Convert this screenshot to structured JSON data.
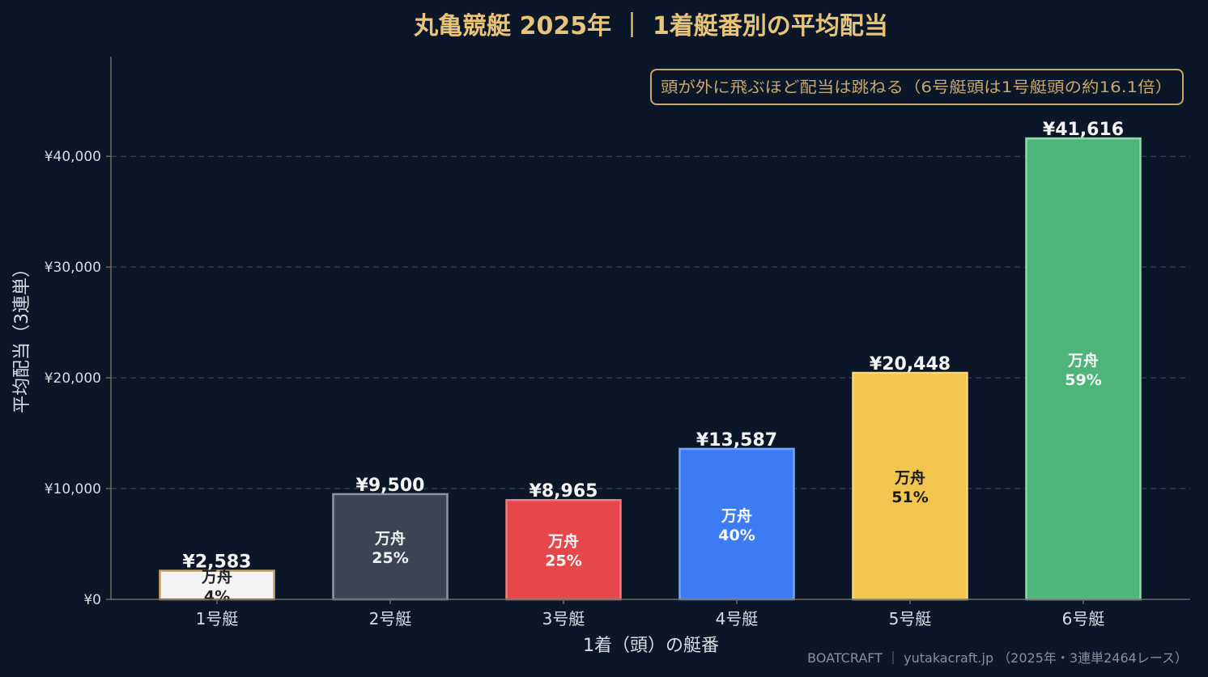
{
  "colors": {
    "background": "#0b1728",
    "title": "#e8c47a",
    "axis_text": "#d9dde3",
    "grid": "#4b6a62",
    "axis_line": "#6e6a60",
    "note_border": "#c9a76a",
    "note_text": "#c9a76a",
    "footer_text": "#8a8f98"
  },
  "chart_data": {
    "type": "bar",
    "title": "丸亀競艇 2025年 ｜ 1着艇番別の平均配当",
    "xlabel": "1着（頭）の艇番",
    "ylabel": "平均配当（3連単）",
    "ylim": [
      0,
      49000
    ],
    "yticks": [
      0,
      10000,
      20000,
      30000,
      40000
    ],
    "ytick_labels": [
      "¥0",
      "¥10,000",
      "¥20,000",
      "¥30,000",
      "¥40,000"
    ],
    "grid": "horizontal-dashed",
    "categories": [
      "1号艇",
      "2号艇",
      "3号艇",
      "4号艇",
      "5号艇",
      "6号艇"
    ],
    "values": [
      2583,
      9500,
      8965,
      13587,
      20448,
      41616
    ],
    "value_labels": [
      "¥2,583",
      "¥9,500",
      "¥8,965",
      "¥13,587",
      "¥20,448",
      "¥41,616"
    ],
    "inner_label_title": "万舟",
    "inner_percent_labels": [
      "4%",
      "25%",
      "25%",
      "40%",
      "51%",
      "59%"
    ],
    "bar_colors": [
      "#f4f4f4",
      "#3b4454",
      "#e5474b",
      "#3d7bf4",
      "#f2c64e",
      "#4fb477"
    ],
    "bar_edge_colors": [
      "#c9a76a",
      "#8c95a3",
      "#f07a7e",
      "#7aa4f8",
      "#f8d980",
      "#8fd8a9"
    ],
    "inner_text_colors": [
      "#222222",
      "#f2f2f2",
      "#f7f7f7",
      "#f7f7f7",
      "#1a1a1a",
      "#f7f7f7"
    ],
    "annotation": "頭が外に飛ぶほど配当は跳ねる（6号艇頭は1号艇頭の約16.1倍）",
    "footer": "BOATCRAFT ｜ yutakacraft.jp （2025年・3連単2464レース）"
  }
}
